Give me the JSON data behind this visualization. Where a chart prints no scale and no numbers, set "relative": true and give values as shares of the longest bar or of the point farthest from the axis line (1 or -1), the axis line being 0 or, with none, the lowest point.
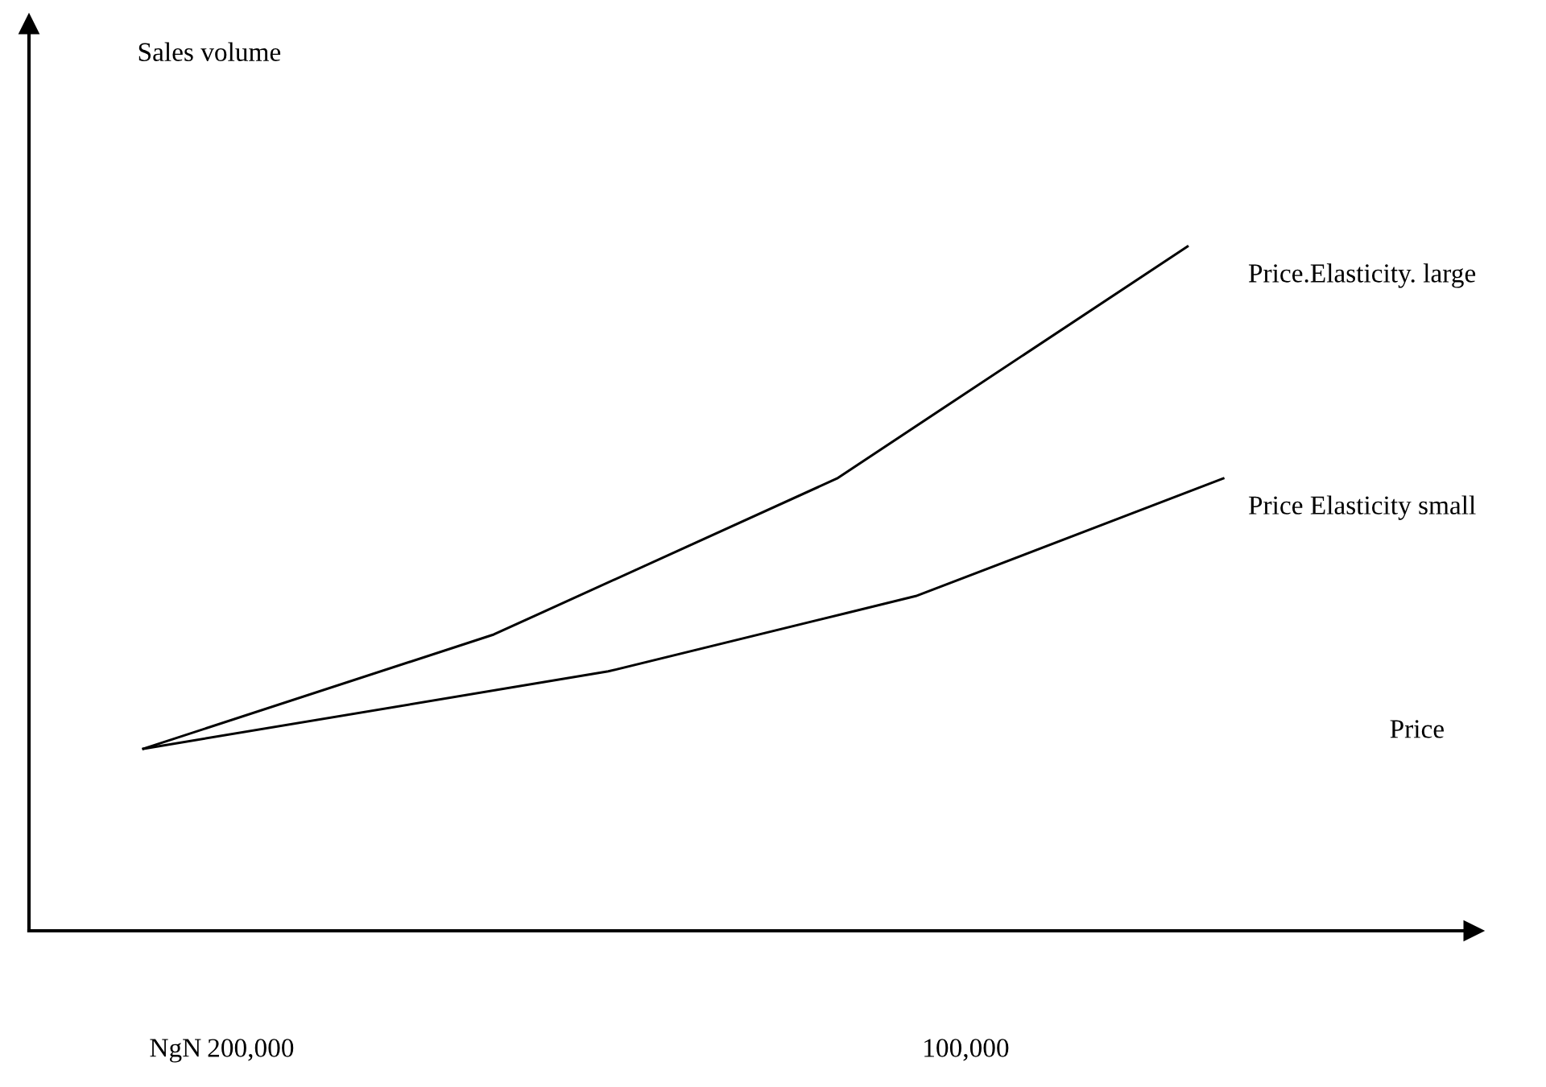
{
  "chart_data": {
    "type": "line",
    "relative": true,
    "xlabel": "Price",
    "xlim": [
      231000,
      29000
    ],
    "xticks": [
      {
        "value": 200000,
        "label": "200,000"
      },
      {
        "value": 100000,
        "label": "100,000"
      }
    ],
    "annotations": [
      "NgN",
      "Sales volume"
    ],
    "series": [
      {
        "name": "Price.Elasticity. large",
        "color": "#000000",
        "x": [
          215000,
          166000,
          118000,
          69000
        ],
        "values": [
          0.266,
          0.433,
          0.661,
          1
        ]
      },
      {
        "name": "Price Elasticity small",
        "color": "#000000",
        "x": [
          215000,
          150000,
          107000,
          64000
        ],
        "values": [
          0.266,
          0.379,
          0.489,
          0.661
        ]
      }
    ],
    "marker": "none",
    "line_style": "solid",
    "grid": false,
    "legend": false
  }
}
